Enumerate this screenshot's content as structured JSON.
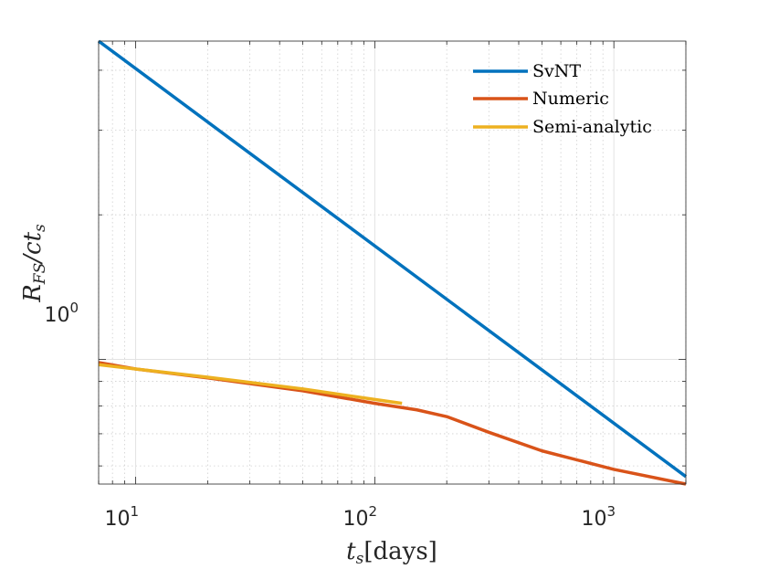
{
  "chart_data": {
    "type": "line",
    "xscale": "log",
    "yscale": "log",
    "xlim": [
      7,
      2000
    ],
    "ylim": [
      0.55,
      4.6
    ],
    "grid": true,
    "minor_grid": true,
    "xlabel": {
      "main": "t",
      "sub": "s",
      "rest": "[days]"
    },
    "ylabel": {
      "main": "R",
      "sub": "FS",
      "rest": "/ct",
      "sub2": "s"
    },
    "x_ticks": [
      {
        "value": 10,
        "base": "10",
        "exp": "1"
      },
      {
        "value": 100,
        "base": "10",
        "exp": "2"
      },
      {
        "value": 1000,
        "base": "10",
        "exp": "3"
      }
    ],
    "y_ticks": [
      {
        "value": 1,
        "base": "10",
        "exp": "0"
      }
    ],
    "legend_position": "top-right",
    "series": [
      {
        "name": "SvNT",
        "color": "#0072BD",
        "x": [
          7,
          2000
        ],
        "y": [
          4.6,
          0.57
        ]
      },
      {
        "name": "Numeric",
        "color": "#D95319",
        "x": [
          7,
          10,
          20,
          50,
          100,
          150,
          200,
          300,
          500,
          1000,
          2000
        ],
        "y": [
          0.985,
          0.955,
          0.915,
          0.86,
          0.81,
          0.785,
          0.76,
          0.705,
          0.645,
          0.59,
          0.55
        ]
      },
      {
        "name": "Semi-analytic",
        "color": "#EDB120",
        "x": [
          7,
          10,
          20,
          50,
          100,
          130
        ],
        "y": [
          0.975,
          0.955,
          0.918,
          0.868,
          0.825,
          0.81
        ]
      }
    ]
  }
}
